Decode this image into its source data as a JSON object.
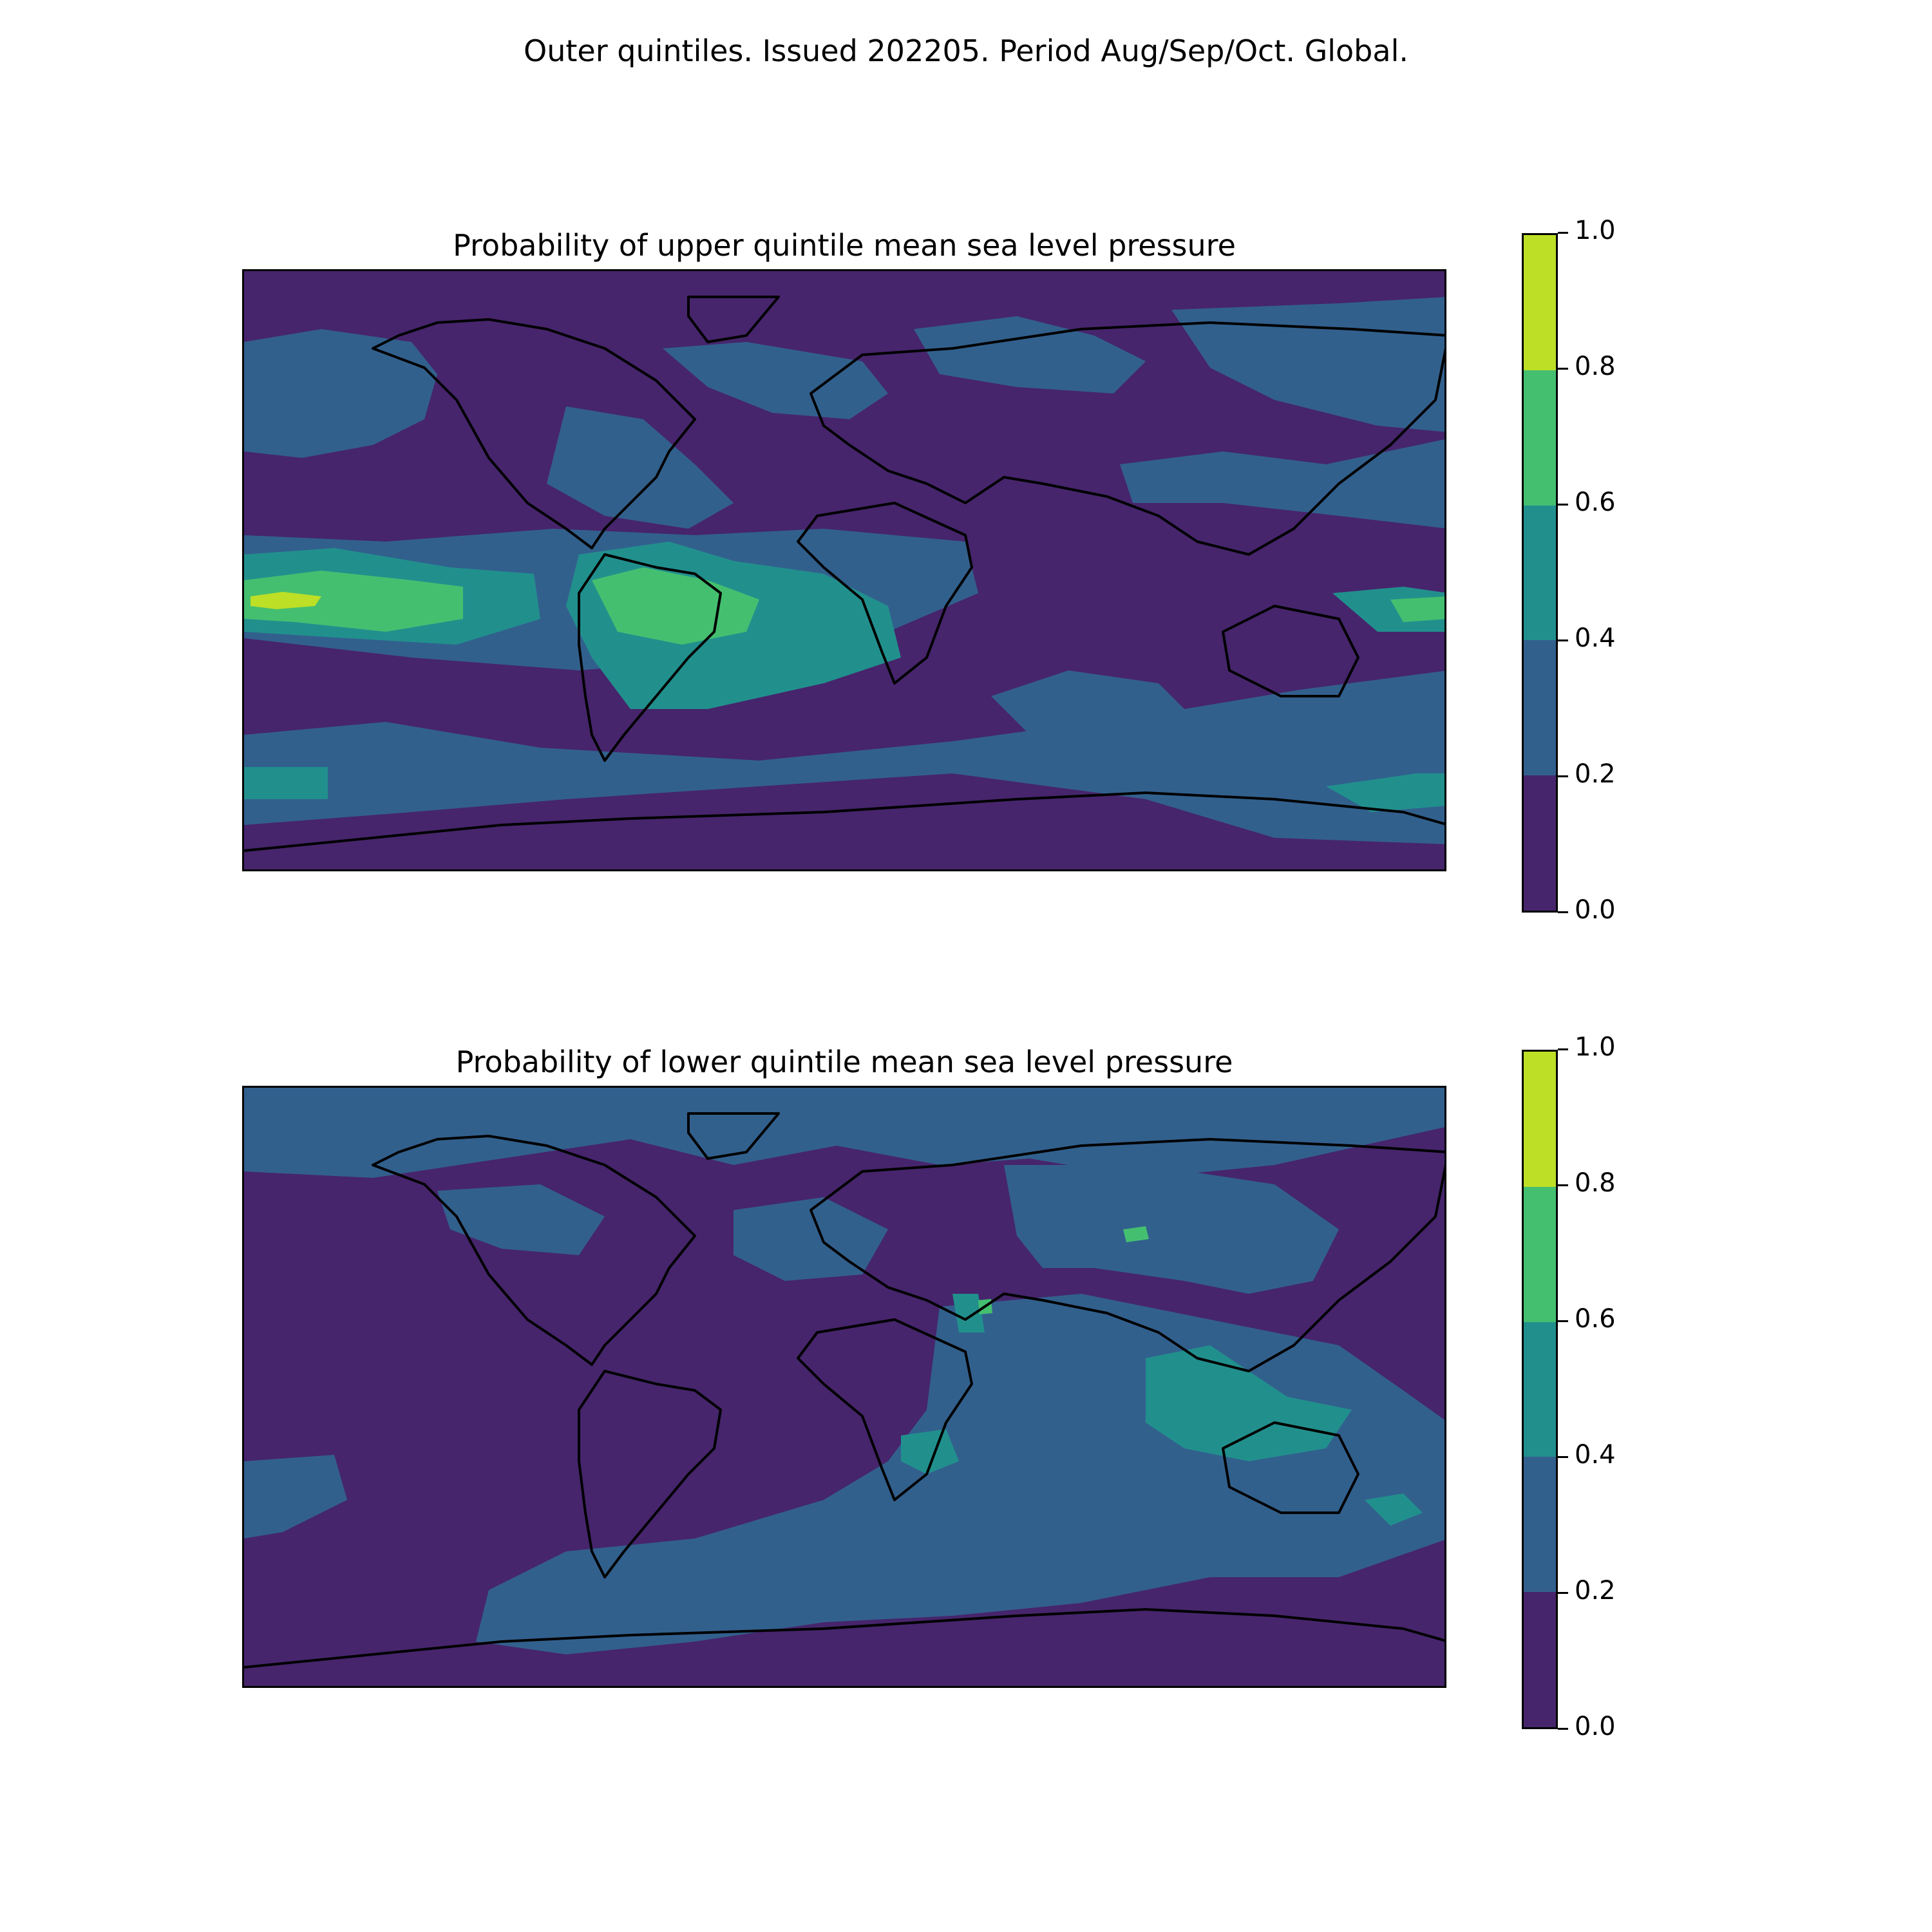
{
  "figure": {
    "suptitle": "Outer quintiles. Issued 202205. Period Aug/Sep/Oct. Global."
  },
  "colorbar": {
    "levels": [
      0.0,
      0.2,
      0.4,
      0.6,
      0.8,
      1.0
    ],
    "tick_labels": [
      "1.0",
      "0.8",
      "0.6",
      "0.4",
      "0.2",
      "0.0"
    ],
    "colors": [
      "#46256c",
      "#32608d",
      "#21908d",
      "#44bf70",
      "#bddf26"
    ]
  },
  "panels": [
    {
      "title": "Probability of upper quintile mean sea level pressure",
      "background_class": "0.0-0.2",
      "dominant_regions": [
        "0.2-0.4 over North Pacific, Atlantic, Southern Ocean",
        "0.4-0.6 over tropical South America and South Atlantic",
        "0.6-0.8 over eastern tropical Pacific",
        "0.8-1.0 small area in eastern tropical Pacific"
      ]
    },
    {
      "title": "Probability of lower quintile mean sea level pressure",
      "background_class": "0.0-0.2",
      "dominant_regions": [
        "0.2-0.4 over Eurasia, Indian Ocean, Arctic",
        "0.4-0.6 over Maritime Continent, northern Australia, southeast Africa, Red Sea"
      ]
    }
  ]
}
